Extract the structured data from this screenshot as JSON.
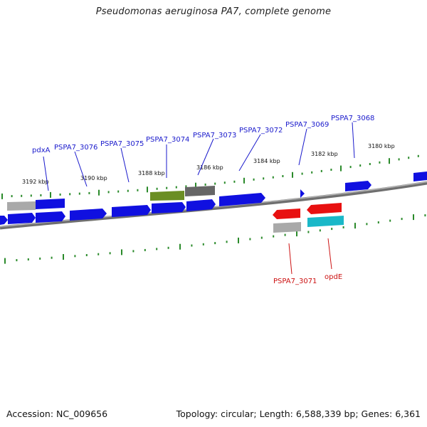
{
  "title": "Pseudomonas aeruginosa PA7, complete genome",
  "footer": {
    "accession": "Accession: NC_009656",
    "summary": "Topology: circular; Length: 6,588,339 bp; Genes: 6,361"
  },
  "colors": {
    "forward_cds": "#1010e0",
    "reverse_cds": "#e81010",
    "grey_feature": "#a9a9a9",
    "dark_grey_feature": "#666666",
    "olive_feature": "#6b8e23",
    "cyan_feature": "#1ab8c8",
    "tick": "#2a8a2a",
    "backbone": "#808080",
    "forward_label": "#1a1acc",
    "reverse_label": "#cc1111"
  },
  "scale": {
    "unit": "kbp",
    "labels": [
      "3192 kbp",
      "3190 kbp",
      "3188 kbp",
      "3186 kbp",
      "3184 kbp",
      "3182 kbp",
      "3180 kbp"
    ]
  },
  "features": {
    "forward": [
      "pdxA",
      "PSPA7_3076",
      "PSPA7_3075",
      "PSPA7_3074",
      "PSPA7_3073",
      "PSPA7_3072",
      "PSPA7_3069",
      "PSPA7_3068"
    ],
    "reverse": [
      "PSPA7_3071",
      "opdE"
    ]
  }
}
